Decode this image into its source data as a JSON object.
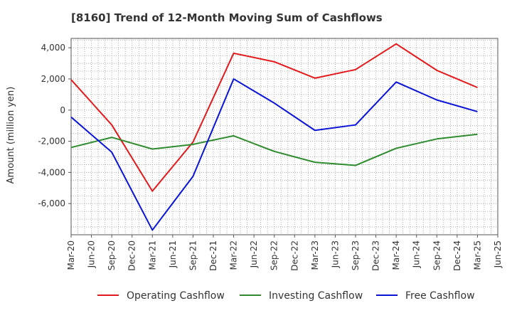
{
  "chart_data": {
    "type": "line",
    "title": "[8160]  Trend of 12-Month Moving Sum of Cashflows",
    "ylabel": "Amount (million yen)",
    "xlabel": "",
    "x_ticks": [
      "Mar-20",
      "Jun-20",
      "Sep-20",
      "Dec-20",
      "Mar-21",
      "Jun-21",
      "Sep-21",
      "Dec-21",
      "Mar-22",
      "Jun-22",
      "Sep-22",
      "Dec-22",
      "Mar-23",
      "Jun-23",
      "Sep-23",
      "Dec-23",
      "Mar-24",
      "Jun-24",
      "Sep-24",
      "Dec-24",
      "Mar-25",
      "Jun-25"
    ],
    "y_ticks": [
      4000,
      2000,
      0,
      -2000,
      -4000,
      -6000
    ],
    "y_tick_labels": [
      "4,000",
      "2,000",
      "0",
      "-2,000",
      "-4,000",
      "-6,000"
    ],
    "ylim": [
      -8000,
      4600
    ],
    "grid": true,
    "legend_position": "bottom",
    "x": [
      "Mar-20",
      "Sep-20",
      "Mar-21",
      "Sep-21",
      "Mar-22",
      "Sep-22",
      "Mar-23",
      "Sep-23",
      "Mar-24",
      "Sep-24",
      "Mar-25"
    ],
    "series": [
      {
        "name": "Operating Cashflow",
        "color": "#e31a1c",
        "values": [
          1950,
          -950,
          -5200,
          -2050,
          3650,
          3100,
          2050,
          2600,
          4250,
          2550,
          1450
        ]
      },
      {
        "name": "Investing Cashflow",
        "color": "#2e8b2e",
        "values": [
          -2400,
          -1750,
          -2500,
          -2200,
          -1650,
          -2650,
          -3350,
          -3550,
          -2450,
          -1850,
          -1550
        ]
      },
      {
        "name": "Free Cashflow",
        "color": "#0a14d6",
        "values": [
          -450,
          -2700,
          -7700,
          -4250,
          2000,
          450,
          -1300,
          -950,
          1800,
          650,
          -100
        ]
      }
    ]
  }
}
